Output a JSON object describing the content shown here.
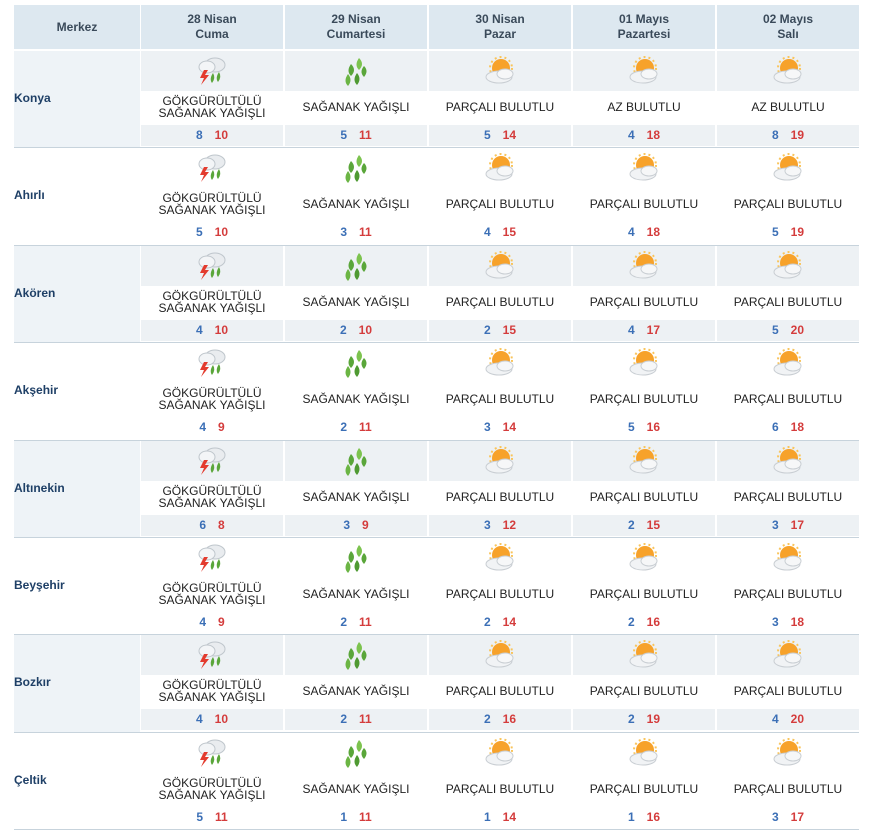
{
  "header": {
    "label": "Merkez",
    "days": [
      {
        "date": "28 Nisan",
        "weekday": "Cuma"
      },
      {
        "date": "29 Nisan",
        "weekday": "Cumartesi"
      },
      {
        "date": "30 Nisan",
        "weekday": "Pazar"
      },
      {
        "date": "01 Mayıs",
        "weekday": "Pazartesi"
      },
      {
        "date": "02 Mayıs",
        "weekday": "Salı"
      }
    ]
  },
  "icons": {
    "storm": "thunderstorm-icon",
    "showers": "rain-showers-icon",
    "partly": "partly-cloudy-icon"
  },
  "rows": [
    {
      "city": "Konya",
      "days": [
        {
          "icon": "storm",
          "line1": "GÖKGÜRÜLTÜLÜ",
          "line2": "SAĞANAK YAĞIŞLI",
          "low": "8",
          "high": "10"
        },
        {
          "icon": "showers",
          "line1": "SAĞANAK YAĞIŞLI",
          "line2": "",
          "low": "5",
          "high": "11"
        },
        {
          "icon": "partly",
          "line1": "PARÇALI BULUTLU",
          "line2": "",
          "low": "5",
          "high": "14"
        },
        {
          "icon": "partly",
          "line1": "AZ BULUTLU",
          "line2": "",
          "low": "4",
          "high": "18"
        },
        {
          "icon": "partly",
          "line1": "AZ BULUTLU",
          "line2": "",
          "low": "8",
          "high": "19"
        }
      ]
    },
    {
      "city": "Ahırlı",
      "days": [
        {
          "icon": "storm",
          "line1": "GÖKGÜRÜLTÜLÜ",
          "line2": "SAĞANAK YAĞIŞLI",
          "low": "5",
          "high": "10"
        },
        {
          "icon": "showers",
          "line1": "SAĞANAK YAĞIŞLI",
          "line2": "",
          "low": "3",
          "high": "11"
        },
        {
          "icon": "partly",
          "line1": "PARÇALI BULUTLU",
          "line2": "",
          "low": "4",
          "high": "15"
        },
        {
          "icon": "partly",
          "line1": "PARÇALI BULUTLU",
          "line2": "",
          "low": "4",
          "high": "18"
        },
        {
          "icon": "partly",
          "line1": "PARÇALI BULUTLU",
          "line2": "",
          "low": "5",
          "high": "19"
        }
      ]
    },
    {
      "city": "Akören",
      "days": [
        {
          "icon": "storm",
          "line1": "GÖKGÜRÜLTÜLÜ",
          "line2": "SAĞANAK YAĞIŞLI",
          "low": "4",
          "high": "10"
        },
        {
          "icon": "showers",
          "line1": "SAĞANAK YAĞIŞLI",
          "line2": "",
          "low": "2",
          "high": "10"
        },
        {
          "icon": "partly",
          "line1": "PARÇALI BULUTLU",
          "line2": "",
          "low": "2",
          "high": "15"
        },
        {
          "icon": "partly",
          "line1": "PARÇALI BULUTLU",
          "line2": "",
          "low": "4",
          "high": "17"
        },
        {
          "icon": "partly",
          "line1": "PARÇALI BULUTLU",
          "line2": "",
          "low": "5",
          "high": "20"
        }
      ]
    },
    {
      "city": "Akşehir",
      "days": [
        {
          "icon": "storm",
          "line1": "GÖKGÜRÜLTÜLÜ",
          "line2": "SAĞANAK YAĞIŞLI",
          "low": "4",
          "high": "9"
        },
        {
          "icon": "showers",
          "line1": "SAĞANAK YAĞIŞLI",
          "line2": "",
          "low": "2",
          "high": "11"
        },
        {
          "icon": "partly",
          "line1": "PARÇALI BULUTLU",
          "line2": "",
          "low": "3",
          "high": "14"
        },
        {
          "icon": "partly",
          "line1": "PARÇALI BULUTLU",
          "line2": "",
          "low": "5",
          "high": "16"
        },
        {
          "icon": "partly",
          "line1": "PARÇALI BULUTLU",
          "line2": "",
          "low": "6",
          "high": "18"
        }
      ]
    },
    {
      "city": "Altınekin",
      "days": [
        {
          "icon": "storm",
          "line1": "GÖKGÜRÜLTÜLÜ",
          "line2": "SAĞANAK YAĞIŞLI",
          "low": "6",
          "high": "8"
        },
        {
          "icon": "showers",
          "line1": "SAĞANAK YAĞIŞLI",
          "line2": "",
          "low": "3",
          "high": "9"
        },
        {
          "icon": "partly",
          "line1": "PARÇALI BULUTLU",
          "line2": "",
          "low": "3",
          "high": "12"
        },
        {
          "icon": "partly",
          "line1": "PARÇALI BULUTLU",
          "line2": "",
          "low": "2",
          "high": "15"
        },
        {
          "icon": "partly",
          "line1": "PARÇALI BULUTLU",
          "line2": "",
          "low": "3",
          "high": "17"
        }
      ]
    },
    {
      "city": "Beyşehir",
      "days": [
        {
          "icon": "storm",
          "line1": "GÖKGÜRÜLTÜLÜ",
          "line2": "SAĞANAK YAĞIŞLI",
          "low": "4",
          "high": "9"
        },
        {
          "icon": "showers",
          "line1": "SAĞANAK YAĞIŞLI",
          "line2": "",
          "low": "2",
          "high": "11"
        },
        {
          "icon": "partly",
          "line1": "PARÇALI BULUTLU",
          "line2": "",
          "low": "2",
          "high": "14"
        },
        {
          "icon": "partly",
          "line1": "PARÇALI BULUTLU",
          "line2": "",
          "low": "2",
          "high": "16"
        },
        {
          "icon": "partly",
          "line1": "PARÇALI BULUTLU",
          "line2": "",
          "low": "3",
          "high": "18"
        }
      ]
    },
    {
      "city": "Bozkır",
      "days": [
        {
          "icon": "storm",
          "line1": "GÖKGÜRÜLTÜLÜ",
          "line2": "SAĞANAK YAĞIŞLI",
          "low": "4",
          "high": "10"
        },
        {
          "icon": "showers",
          "line1": "SAĞANAK YAĞIŞLI",
          "line2": "",
          "low": "2",
          "high": "11"
        },
        {
          "icon": "partly",
          "line1": "PARÇALI BULUTLU",
          "line2": "",
          "low": "2",
          "high": "16"
        },
        {
          "icon": "partly",
          "line1": "PARÇALI BULUTLU",
          "line2": "",
          "low": "2",
          "high": "19"
        },
        {
          "icon": "partly",
          "line1": "PARÇALI BULUTLU",
          "line2": "",
          "low": "4",
          "high": "20"
        }
      ]
    },
    {
      "city": "Çeltik",
      "days": [
        {
          "icon": "storm",
          "line1": "GÖKGÜRÜLTÜLÜ",
          "line2": "SAĞANAK YAĞIŞLI",
          "low": "5",
          "high": "11"
        },
        {
          "icon": "showers",
          "line1": "SAĞANAK YAĞIŞLI",
          "line2": "",
          "low": "1",
          "high": "11"
        },
        {
          "icon": "partly",
          "line1": "PARÇALI BULUTLU",
          "line2": "",
          "low": "1",
          "high": "14"
        },
        {
          "icon": "partly",
          "line1": "PARÇALI BULUTLU",
          "line2": "",
          "low": "1",
          "high": "16"
        },
        {
          "icon": "partly",
          "line1": "PARÇALI BULUTLU",
          "line2": "",
          "low": "3",
          "high": "17"
        }
      ]
    }
  ]
}
